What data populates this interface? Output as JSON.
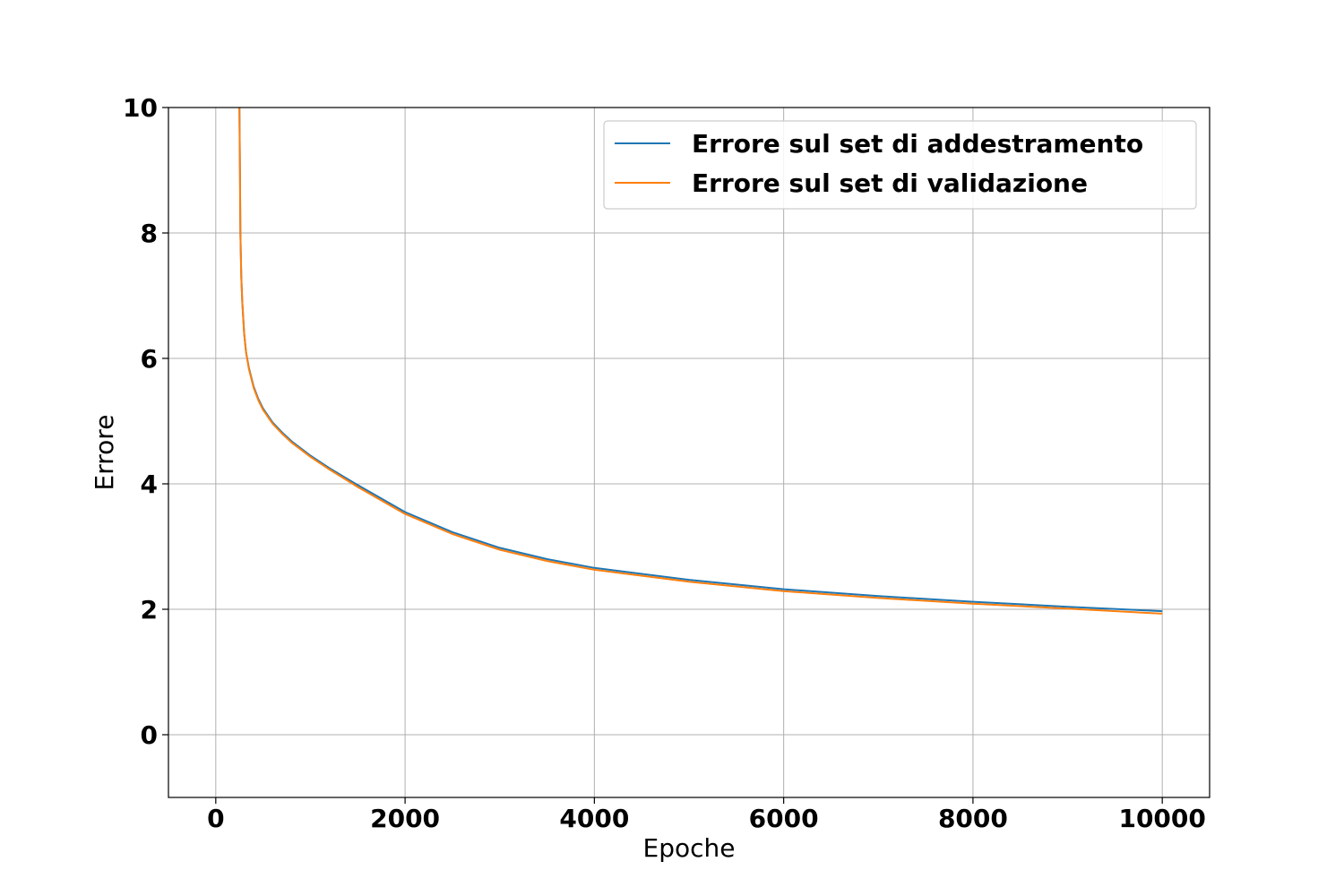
{
  "chart_data": {
    "type": "line",
    "title": "",
    "xlabel": "Epoche",
    "ylabel": "Errore",
    "xlim": [
      -500,
      10500
    ],
    "ylim": [
      -1,
      10
    ],
    "xticks": [
      0,
      2000,
      4000,
      6000,
      8000,
      10000
    ],
    "xtick_labels": [
      "0",
      "2000",
      "4000",
      "6000",
      "8000",
      "10000"
    ],
    "yticks": [
      0,
      2,
      4,
      6,
      8,
      10
    ],
    "ytick_labels": [
      "0",
      "2",
      "4",
      "6",
      "8",
      "10"
    ],
    "grid": true,
    "legend_position": "top-right",
    "series": [
      {
        "name": "Errore sul set di addestramento",
        "color": "#1f77b4",
        "x": [
          250,
          255,
          260,
          270,
          280,
          300,
          320,
          350,
          400,
          450,
          500,
          600,
          700,
          800,
          1000,
          1200,
          1500,
          2000,
          2500,
          3000,
          3500,
          4000,
          5000,
          6000,
          7000,
          8000,
          9000,
          10000
        ],
        "y": [
          10.0,
          9.0,
          8.0,
          7.3,
          6.9,
          6.4,
          6.1,
          5.85,
          5.55,
          5.35,
          5.2,
          4.98,
          4.82,
          4.68,
          4.45,
          4.25,
          3.98,
          3.55,
          3.23,
          2.98,
          2.8,
          2.66,
          2.47,
          2.32,
          2.21,
          2.12,
          2.04,
          1.97
        ]
      },
      {
        "name": "Errore sul set di validazione",
        "color": "#ff7f0e",
        "x": [
          250,
          255,
          260,
          270,
          280,
          300,
          320,
          350,
          400,
          450,
          500,
          600,
          700,
          800,
          1000,
          1200,
          1500,
          2000,
          2500,
          3000,
          3500,
          4000,
          5000,
          6000,
          7000,
          8000,
          9000,
          10000
        ],
        "y": [
          10.0,
          9.0,
          8.0,
          7.3,
          6.9,
          6.4,
          6.1,
          5.83,
          5.53,
          5.33,
          5.18,
          4.96,
          4.8,
          4.66,
          4.43,
          4.23,
          3.95,
          3.52,
          3.2,
          2.95,
          2.77,
          2.63,
          2.44,
          2.29,
          2.18,
          2.09,
          2.01,
          1.93
        ]
      }
    ]
  }
}
